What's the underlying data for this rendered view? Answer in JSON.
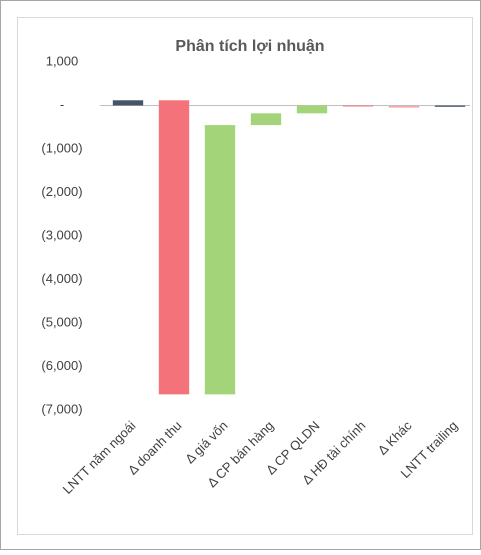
{
  "chart_data": {
    "type": "waterfall",
    "title": "Phân tích lợi nhuận",
    "categories": [
      "LNTT năm ngoái",
      "Δ doanh thu",
      "Δ giá vốn",
      "Δ CP bán hàng",
      "Δ CP QLDN",
      "Δ HĐ tài chính",
      "Δ Khác",
      "LNTT trailing"
    ],
    "values": [
      120,
      -6760,
      6190,
      270,
      180,
      -20,
      -10,
      -30
    ],
    "colors": {
      "total": "#44546a",
      "increase": "#a3d47a",
      "decrease": "#f4737a"
    },
    "ylim": [
      -7000,
      1000
    ],
    "yticks": [
      {
        "value": 1000,
        "label": "1,000"
      },
      {
        "value": 0,
        "label": "-"
      },
      {
        "value": -1000,
        "label": "(1,000)"
      },
      {
        "value": -2000,
        "label": "(2,000)"
      },
      {
        "value": -3000,
        "label": "(3,000)"
      },
      {
        "value": -4000,
        "label": "(4,000)"
      },
      {
        "value": -5000,
        "label": "(5,000)"
      },
      {
        "value": -6000,
        "label": "(6,000)"
      },
      {
        "value": -7000,
        "label": "(7,000)"
      }
    ]
  }
}
